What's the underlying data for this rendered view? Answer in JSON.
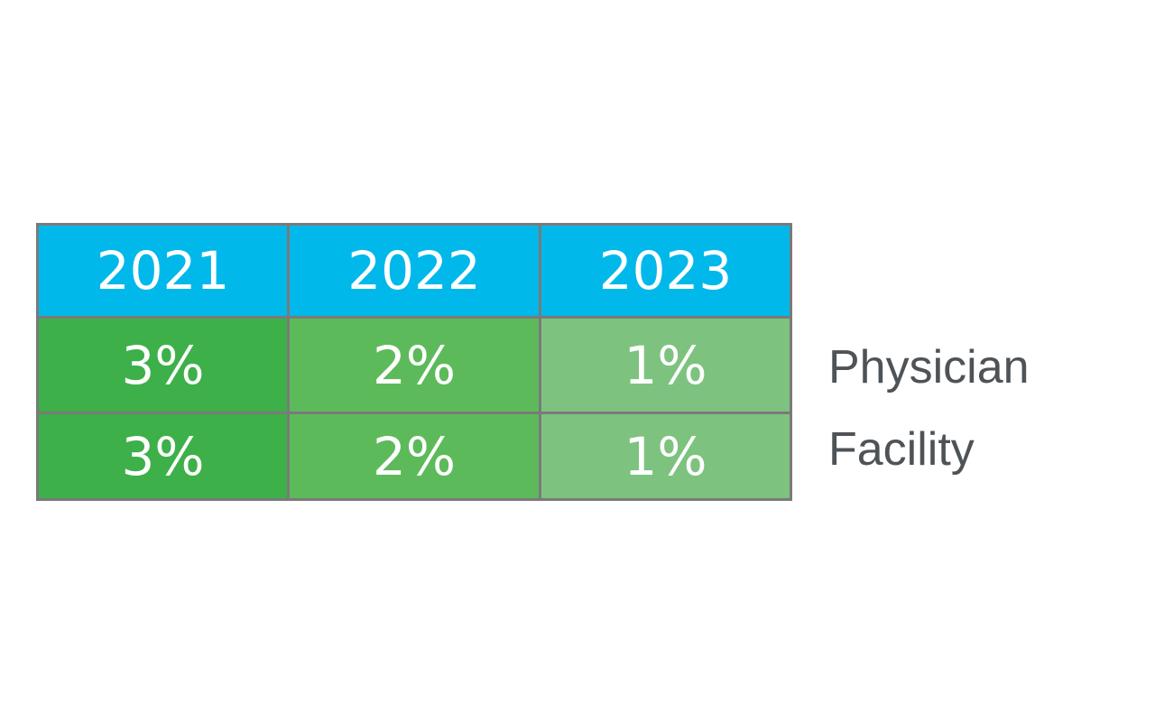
{
  "chart_data": {
    "type": "table",
    "columns": [
      "2021",
      "2022",
      "2023"
    ],
    "rows": [
      {
        "label": "Physician",
        "values": [
          "3%",
          "2%",
          "1%"
        ]
      },
      {
        "label": "Facility",
        "values": [
          "3%",
          "2%",
          "1%"
        ]
      }
    ],
    "colors": {
      "header": "#00b8ea",
      "column_fills": [
        "#3db049",
        "#5dba5a",
        "#7dc37f"
      ],
      "border": "#7a7a7a",
      "cell_text": "#ffffff",
      "row_label_text": "#4e5357"
    }
  }
}
